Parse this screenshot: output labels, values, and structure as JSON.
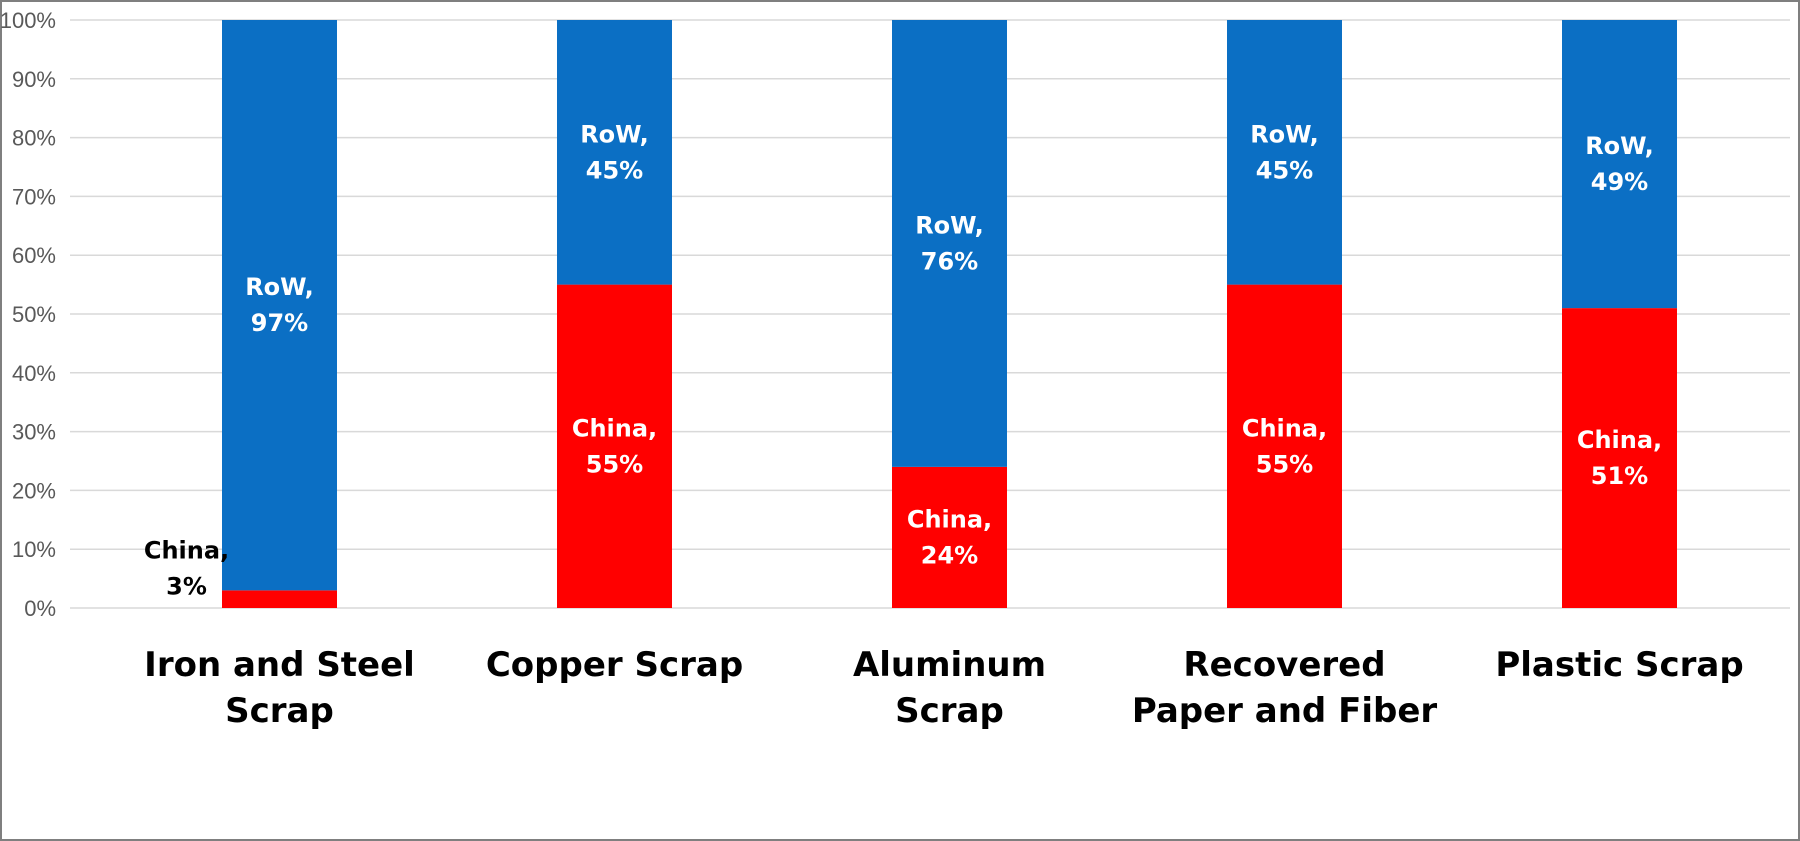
{
  "chart_data": {
    "type": "bar",
    "stacked": true,
    "categories": [
      [
        "Iron and Steel",
        "Scrap"
      ],
      [
        "Copper Scrap"
      ],
      [
        "Aluminum",
        "Scrap"
      ],
      [
        "Recovered",
        "Paper and Fiber"
      ],
      [
        "Plastic Scrap"
      ]
    ],
    "series": [
      {
        "name": "China",
        "color": "#ff0000",
        "values": [
          3,
          55,
          24,
          55,
          51
        ]
      },
      {
        "name": "RoW",
        "color": "#0b6fc4",
        "values": [
          97,
          45,
          76,
          45,
          49
        ]
      }
    ],
    "data_labels": {
      "China": [
        [
          "China,",
          "3%"
        ],
        [
          "China,",
          "55%"
        ],
        [
          "China,",
          "24%"
        ],
        [
          "China,",
          "55%"
        ],
        [
          "China,",
          "51%"
        ]
      ],
      "RoW": [
        [
          "RoW,",
          "97%"
        ],
        [
          "RoW,",
          "45%"
        ],
        [
          "RoW,",
          "76%"
        ],
        [
          "RoW,",
          "45%"
        ],
        [
          "RoW,",
          "49%"
        ]
      ]
    },
    "y_ticks": [
      "0%",
      "10%",
      "20%",
      "30%",
      "40%",
      "50%",
      "60%",
      "70%",
      "80%",
      "90%",
      "100%"
    ],
    "ylim": [
      0,
      100
    ],
    "grid": true,
    "legend": "none",
    "title": "",
    "xlabel": "",
    "ylabel": ""
  }
}
